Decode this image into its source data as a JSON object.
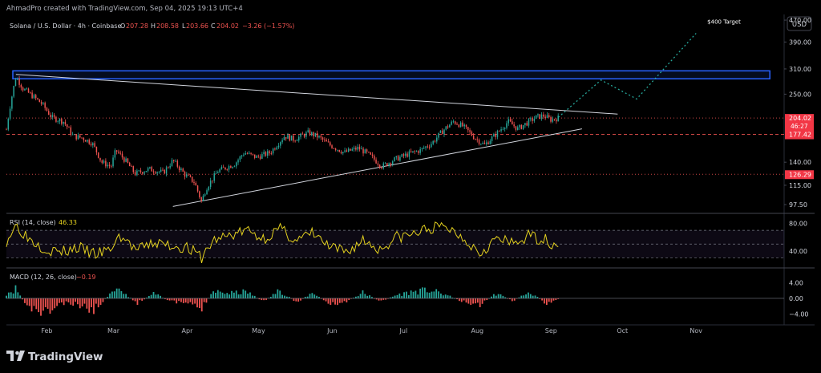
{
  "header": {
    "credit": "AhmadPro created with TradingView.com, Sep 04, 2025 19:13 UTC+4"
  },
  "currency_button": "USD",
  "footer": {
    "logo_text": "TradingView"
  },
  "colors": {
    "background": "#000000",
    "candle_up": "#26a69a",
    "candle_down": "#ef5350",
    "rsi_line": "#e5d21f",
    "zone_border": "#2962ff",
    "projection": "#26a69a",
    "level_line": "#ef5350",
    "price_badge": "#f23645"
  },
  "chart_data": [
    {
      "type": "candlestick",
      "title": "Solana / U.S. Dollar · 4h · Coinbase",
      "ohlc_labels": [
        "O",
        "H",
        "L",
        "C"
      ],
      "ohlc": {
        "open": "207.28",
        "high": "208.58",
        "low": "203.66",
        "close": "204.02",
        "change": "−3.26 (−1.57%)"
      },
      "scale": "log",
      "ylim": [
        93,
        480
      ],
      "y_ticks": [
        470,
        390,
        310,
        250,
        140,
        115,
        97.5
      ],
      "y_tick_labels": [
        "470.00",
        "390.00",
        "310.00",
        "250.00",
        "140.00",
        "115.00",
        "97.50"
      ],
      "x_ticks": [
        "Feb",
        "Mar",
        "Apr",
        "May",
        "Jun",
        "Jul",
        "Aug",
        "Sep",
        "Oct",
        "Nov"
      ],
      "xlim": [
        "2025-01-15",
        "2025-12-08"
      ],
      "price_series": [
        [
          "2025-01-15",
          185
        ],
        [
          "2025-01-19",
          290
        ],
        [
          "2025-01-22",
          262
        ],
        [
          "2025-01-25",
          250
        ],
        [
          "2025-01-30",
          230
        ],
        [
          "2025-02-03",
          205
        ],
        [
          "2025-02-08",
          198
        ],
        [
          "2025-02-12",
          175
        ],
        [
          "2025-02-16",
          172
        ],
        [
          "2025-02-20",
          165
        ],
        [
          "2025-02-24",
          140
        ],
        [
          "2025-02-28",
          135
        ],
        [
          "2025-03-02",
          155
        ],
        [
          "2025-03-06",
          142
        ],
        [
          "2025-03-10",
          127
        ],
        [
          "2025-03-16",
          132
        ],
        [
          "2025-03-22",
          128
        ],
        [
          "2025-03-26",
          142
        ],
        [
          "2025-03-31",
          126
        ],
        [
          "2025-04-04",
          118
        ],
        [
          "2025-04-07",
          100
        ],
        [
          "2025-04-09",
          112
        ],
        [
          "2025-04-14",
          130
        ],
        [
          "2025-04-21",
          138
        ],
        [
          "2025-04-25",
          152
        ],
        [
          "2025-04-30",
          146
        ],
        [
          "2025-05-06",
          152
        ],
        [
          "2025-05-12",
          175
        ],
        [
          "2025-05-16",
          170
        ],
        [
          "2025-05-22",
          180
        ],
        [
          "2025-05-26",
          174
        ],
        [
          "2025-05-31",
          162
        ],
        [
          "2025-06-06",
          152
        ],
        [
          "2025-06-12",
          158
        ],
        [
          "2025-06-16",
          150
        ],
        [
          "2025-06-22",
          135
        ],
        [
          "2025-06-27",
          143
        ],
        [
          "2025-07-03",
          150
        ],
        [
          "2025-07-08",
          155
        ],
        [
          "2025-07-13",
          165
        ],
        [
          "2025-07-18",
          185
        ],
        [
          "2025-07-22",
          198
        ],
        [
          "2025-07-26",
          190
        ],
        [
          "2025-07-31",
          172
        ],
        [
          "2025-08-04",
          162
        ],
        [
          "2025-08-09",
          178
        ],
        [
          "2025-08-14",
          198
        ],
        [
          "2025-08-18",
          186
        ],
        [
          "2025-08-22",
          196
        ],
        [
          "2025-08-26",
          206
        ],
        [
          "2025-08-29",
          208
        ],
        [
          "2025-09-01",
          201
        ],
        [
          "2025-09-04",
          204
        ]
      ],
      "supply_zone": {
        "low": 285,
        "high": 305,
        "start": "2025-01-15",
        "end": "2025-12-02"
      },
      "trendlines": [
        {
          "start": [
            "2025-01-19",
            296
          ],
          "end": [
            "2025-09-29",
            211
          ]
        },
        {
          "start": [
            "2025-03-26",
            96
          ],
          "end": [
            "2025-09-14",
            186
          ]
        }
      ],
      "projection": [
        [
          "2025-09-04",
          205
        ],
        [
          "2025-09-22",
          282
        ],
        [
          "2025-10-07",
          240
        ],
        [
          "2025-11-01",
          420
        ]
      ],
      "annotation": {
        "text": "$400 Target",
        "x": "2025-11-03",
        "y": 415
      },
      "levels": [
        {
          "price": 204.02,
          "style": "dotted",
          "label": "204.02",
          "badge": true
        },
        {
          "price": 177.42,
          "style": "dashed",
          "label": "177.42",
          "badge": true
        },
        {
          "price": 126.29,
          "style": "dotted",
          "label": "126.29",
          "badge": true
        }
      ],
      "countdown": "46:27"
    },
    {
      "type": "line",
      "title": "RSI (14, close)",
      "value": "46.33",
      "ylim": [
        20,
        90
      ],
      "band": [
        30,
        70
      ],
      "mid": 50,
      "y_tick_labels": [
        "80.00",
        "40.00"
      ],
      "y_ticks": [
        80,
        40
      ],
      "x": [
        "2025-01-15",
        "2025-01-19",
        "2025-01-24",
        "2025-02-01",
        "2025-02-07",
        "2025-02-14",
        "2025-02-21",
        "2025-02-27",
        "2025-03-04",
        "2025-03-11",
        "2025-03-18",
        "2025-03-25",
        "2025-04-01",
        "2025-04-07",
        "2025-04-12",
        "2025-04-19",
        "2025-04-26",
        "2025-05-03",
        "2025-05-10",
        "2025-05-17",
        "2025-05-24",
        "2025-05-31",
        "2025-06-07",
        "2025-06-14",
        "2025-06-21",
        "2025-06-28",
        "2025-07-05",
        "2025-07-12",
        "2025-07-19",
        "2025-07-26",
        "2025-08-02",
        "2025-08-09",
        "2025-08-16",
        "2025-08-23",
        "2025-08-30",
        "2025-09-04"
      ],
      "values": [
        55,
        78,
        60,
        42,
        38,
        45,
        35,
        40,
        62,
        40,
        52,
        48,
        45,
        30,
        55,
        63,
        70,
        58,
        72,
        55,
        66,
        44,
        38,
        56,
        42,
        60,
        64,
        73,
        75,
        60,
        38,
        58,
        50,
        62,
        56,
        46
      ]
    },
    {
      "type": "bar",
      "title": "MACD (12, 26, close)",
      "value": "−0.19",
      "ylim": [
        -6,
        7
      ],
      "y_ticks": [
        4,
        0,
        -4
      ],
      "y_tick_labels": [
        "4.00",
        "0.00",
        "−4.00"
      ],
      "x": [
        "2025-01-15",
        "2025-01-19",
        "2025-01-24",
        "2025-02-01",
        "2025-02-07",
        "2025-02-14",
        "2025-02-21",
        "2025-02-27",
        "2025-03-04",
        "2025-03-11",
        "2025-03-18",
        "2025-03-25",
        "2025-04-01",
        "2025-04-07",
        "2025-04-12",
        "2025-04-19",
        "2025-04-26",
        "2025-05-03",
        "2025-05-10",
        "2025-05-17",
        "2025-05-24",
        "2025-05-31",
        "2025-06-07",
        "2025-06-14",
        "2025-06-21",
        "2025-06-28",
        "2025-07-05",
        "2025-07-12",
        "2025-07-19",
        "2025-07-26",
        "2025-08-02",
        "2025-08-09",
        "2025-08-16",
        "2025-08-23",
        "2025-08-30",
        "2025-09-04"
      ],
      "values": [
        1.5,
        3.0,
        -3.0,
        -4.5,
        -1.5,
        -2.0,
        -3.5,
        1.0,
        2.5,
        -1.5,
        1.5,
        -1.0,
        -1.5,
        -3.0,
        2.0,
        1.5,
        2.0,
        -1.0,
        2.5,
        -1.2,
        1.8,
        -2.0,
        -1.0,
        1.8,
        -1.0,
        1.0,
        2.0,
        2.5,
        1.0,
        -1.0,
        -2.0,
        1.5,
        -0.8,
        2.0,
        -1.5,
        -0.19
      ]
    }
  ]
}
